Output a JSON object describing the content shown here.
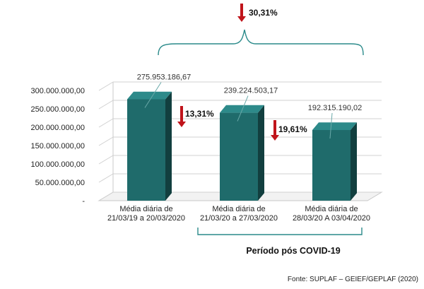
{
  "chart_data": {
    "type": "bar",
    "categories": [
      [
        "Média diária de",
        "21/03/19 a 20/03/2020"
      ],
      [
        "Média diária de",
        "21/03/20 a 27/03/2020"
      ],
      [
        "Média diária de",
        "28/03/20 A 03/04/2020"
      ]
    ],
    "values": [
      275953186.67,
      239224503.17,
      192315190.02
    ],
    "data_labels": [
      "275.953.186,67",
      "239.224.503,17",
      "192.315.190,02"
    ],
    "y_ticks": [
      {
        "value": 0,
        "label": "-"
      },
      {
        "value": 50000000,
        "label": "50.000.000,00"
      },
      {
        "value": 100000000,
        "label": "100.000.000,00"
      },
      {
        "value": 150000000,
        "label": "150.000.000,00"
      },
      {
        "value": 200000000,
        "label": "200.000.000,00"
      },
      {
        "value": 250000000,
        "label": "250.000.000,00"
      },
      {
        "value": 300000000,
        "label": "300.000.000,00"
      }
    ],
    "ylim": [
      0,
      300000000
    ],
    "grid": true,
    "style": "3d",
    "bar_color": "#1f6b6b",
    "annotations": {
      "total_change": "30,31%",
      "step_changes": [
        "13,31%",
        "19,61%"
      ],
      "arrow_color": "#c0141b",
      "bracket_color": "#2a8a8a"
    },
    "period_label": "Período pós COVID-19"
  },
  "source": "Fonte: SUPLAF – GEIEF/GEPLAF (2020)"
}
